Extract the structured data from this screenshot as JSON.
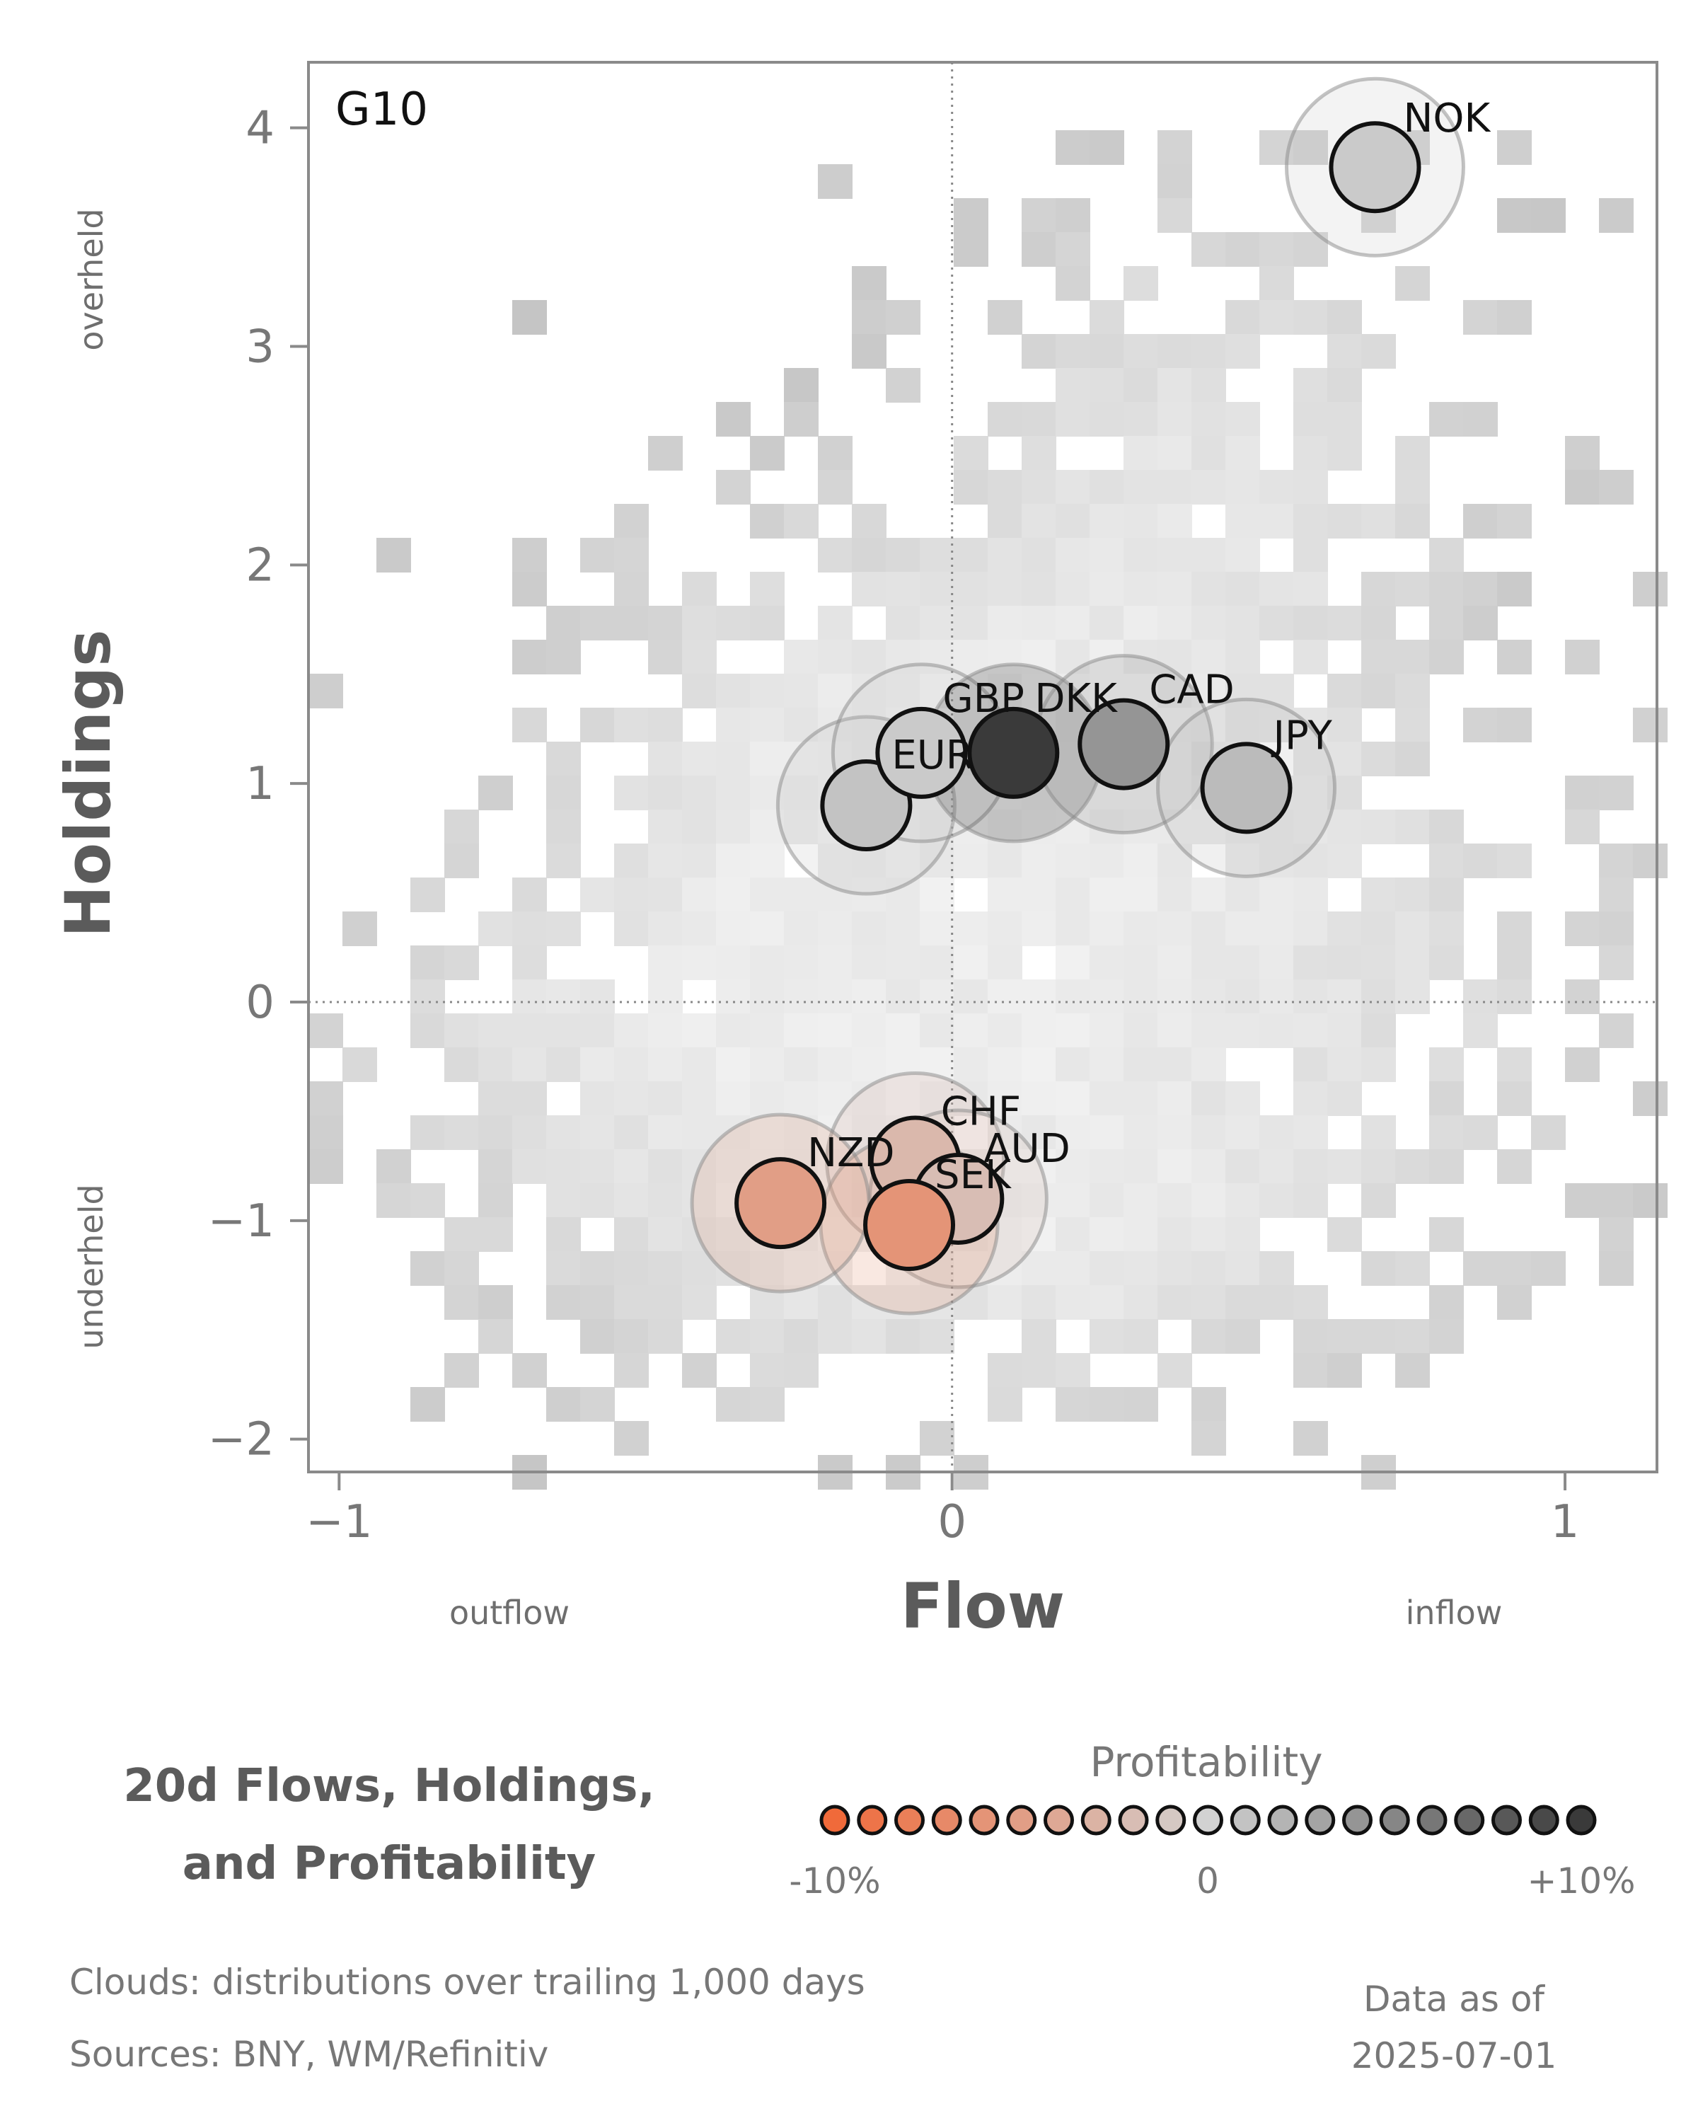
{
  "chart_data": {
    "type": "scatter",
    "panel_label": "G10",
    "xlabel": "Flow",
    "ylabel": "Holdings",
    "xlim": [
      -1.05,
      1.15
    ],
    "ylim": [
      -2.15,
      4.3
    ],
    "x_ticks": [
      {
        "value": -1,
        "label": "−1"
      },
      {
        "value": 0,
        "label": "0"
      },
      {
        "value": 1,
        "label": "1"
      }
    ],
    "y_ticks": [
      {
        "value": -2,
        "label": "−2"
      },
      {
        "value": -1,
        "label": "−1"
      },
      {
        "value": 0,
        "label": "0"
      },
      {
        "value": 1,
        "label": "1"
      },
      {
        "value": 2,
        "label": "2"
      },
      {
        "value": 3,
        "label": "3"
      },
      {
        "value": 4,
        "label": "4"
      }
    ],
    "x_side_labels": {
      "left": "outflow",
      "right": "inflow"
    },
    "y_side_labels": {
      "top": "overheld",
      "bottom": "underheld"
    },
    "reference_lines": {
      "x": 0,
      "y": 0
    },
    "points": [
      {
        "label": "NOK",
        "x": 0.69,
        "y": 3.82,
        "profitability": 0.5
      },
      {
        "label": "EUR",
        "x": -0.14,
        "y": 0.9,
        "profitability": 1.0
      },
      {
        "label": "GBP",
        "x": -0.05,
        "y": 1.14,
        "profitability": 0.5
      },
      {
        "label": "DKK",
        "x": 0.1,
        "y": 1.14,
        "profitability": 10.0
      },
      {
        "label": "CAD",
        "x": 0.28,
        "y": 1.18,
        "profitability": 4.0
      },
      {
        "label": "JPY",
        "x": 0.48,
        "y": 0.98,
        "profitability": 1.5
      },
      {
        "label": "CHF",
        "x": -0.06,
        "y": -0.73,
        "profitability": -2.5
      },
      {
        "label": "AUD",
        "x": 0.01,
        "y": -0.9,
        "profitability": -2.0
      },
      {
        "label": "SEK",
        "x": -0.07,
        "y": -1.02,
        "profitability": -6.0
      },
      {
        "label": "NZD",
        "x": -0.28,
        "y": -0.92,
        "profitability": -5.0
      }
    ],
    "colorbar": {
      "title": "Profitability",
      "min_label": "-10%",
      "mid_label": "0",
      "max_label": "+10%",
      "range": [
        -10,
        10
      ],
      "low_color": "#f06a3a",
      "mid_color": "#d2d2d2",
      "high_color": "#3a3a3a"
    },
    "caption": [
      "20d Flows, Holdings,",
      "and Profitability"
    ],
    "notes": [
      "Clouds:  distributions over trailing 1,000 days",
      "Sources:  BNY, WM/Refinitiv"
    ],
    "as_of": [
      "Data as of",
      "2025-07-01"
    ]
  }
}
